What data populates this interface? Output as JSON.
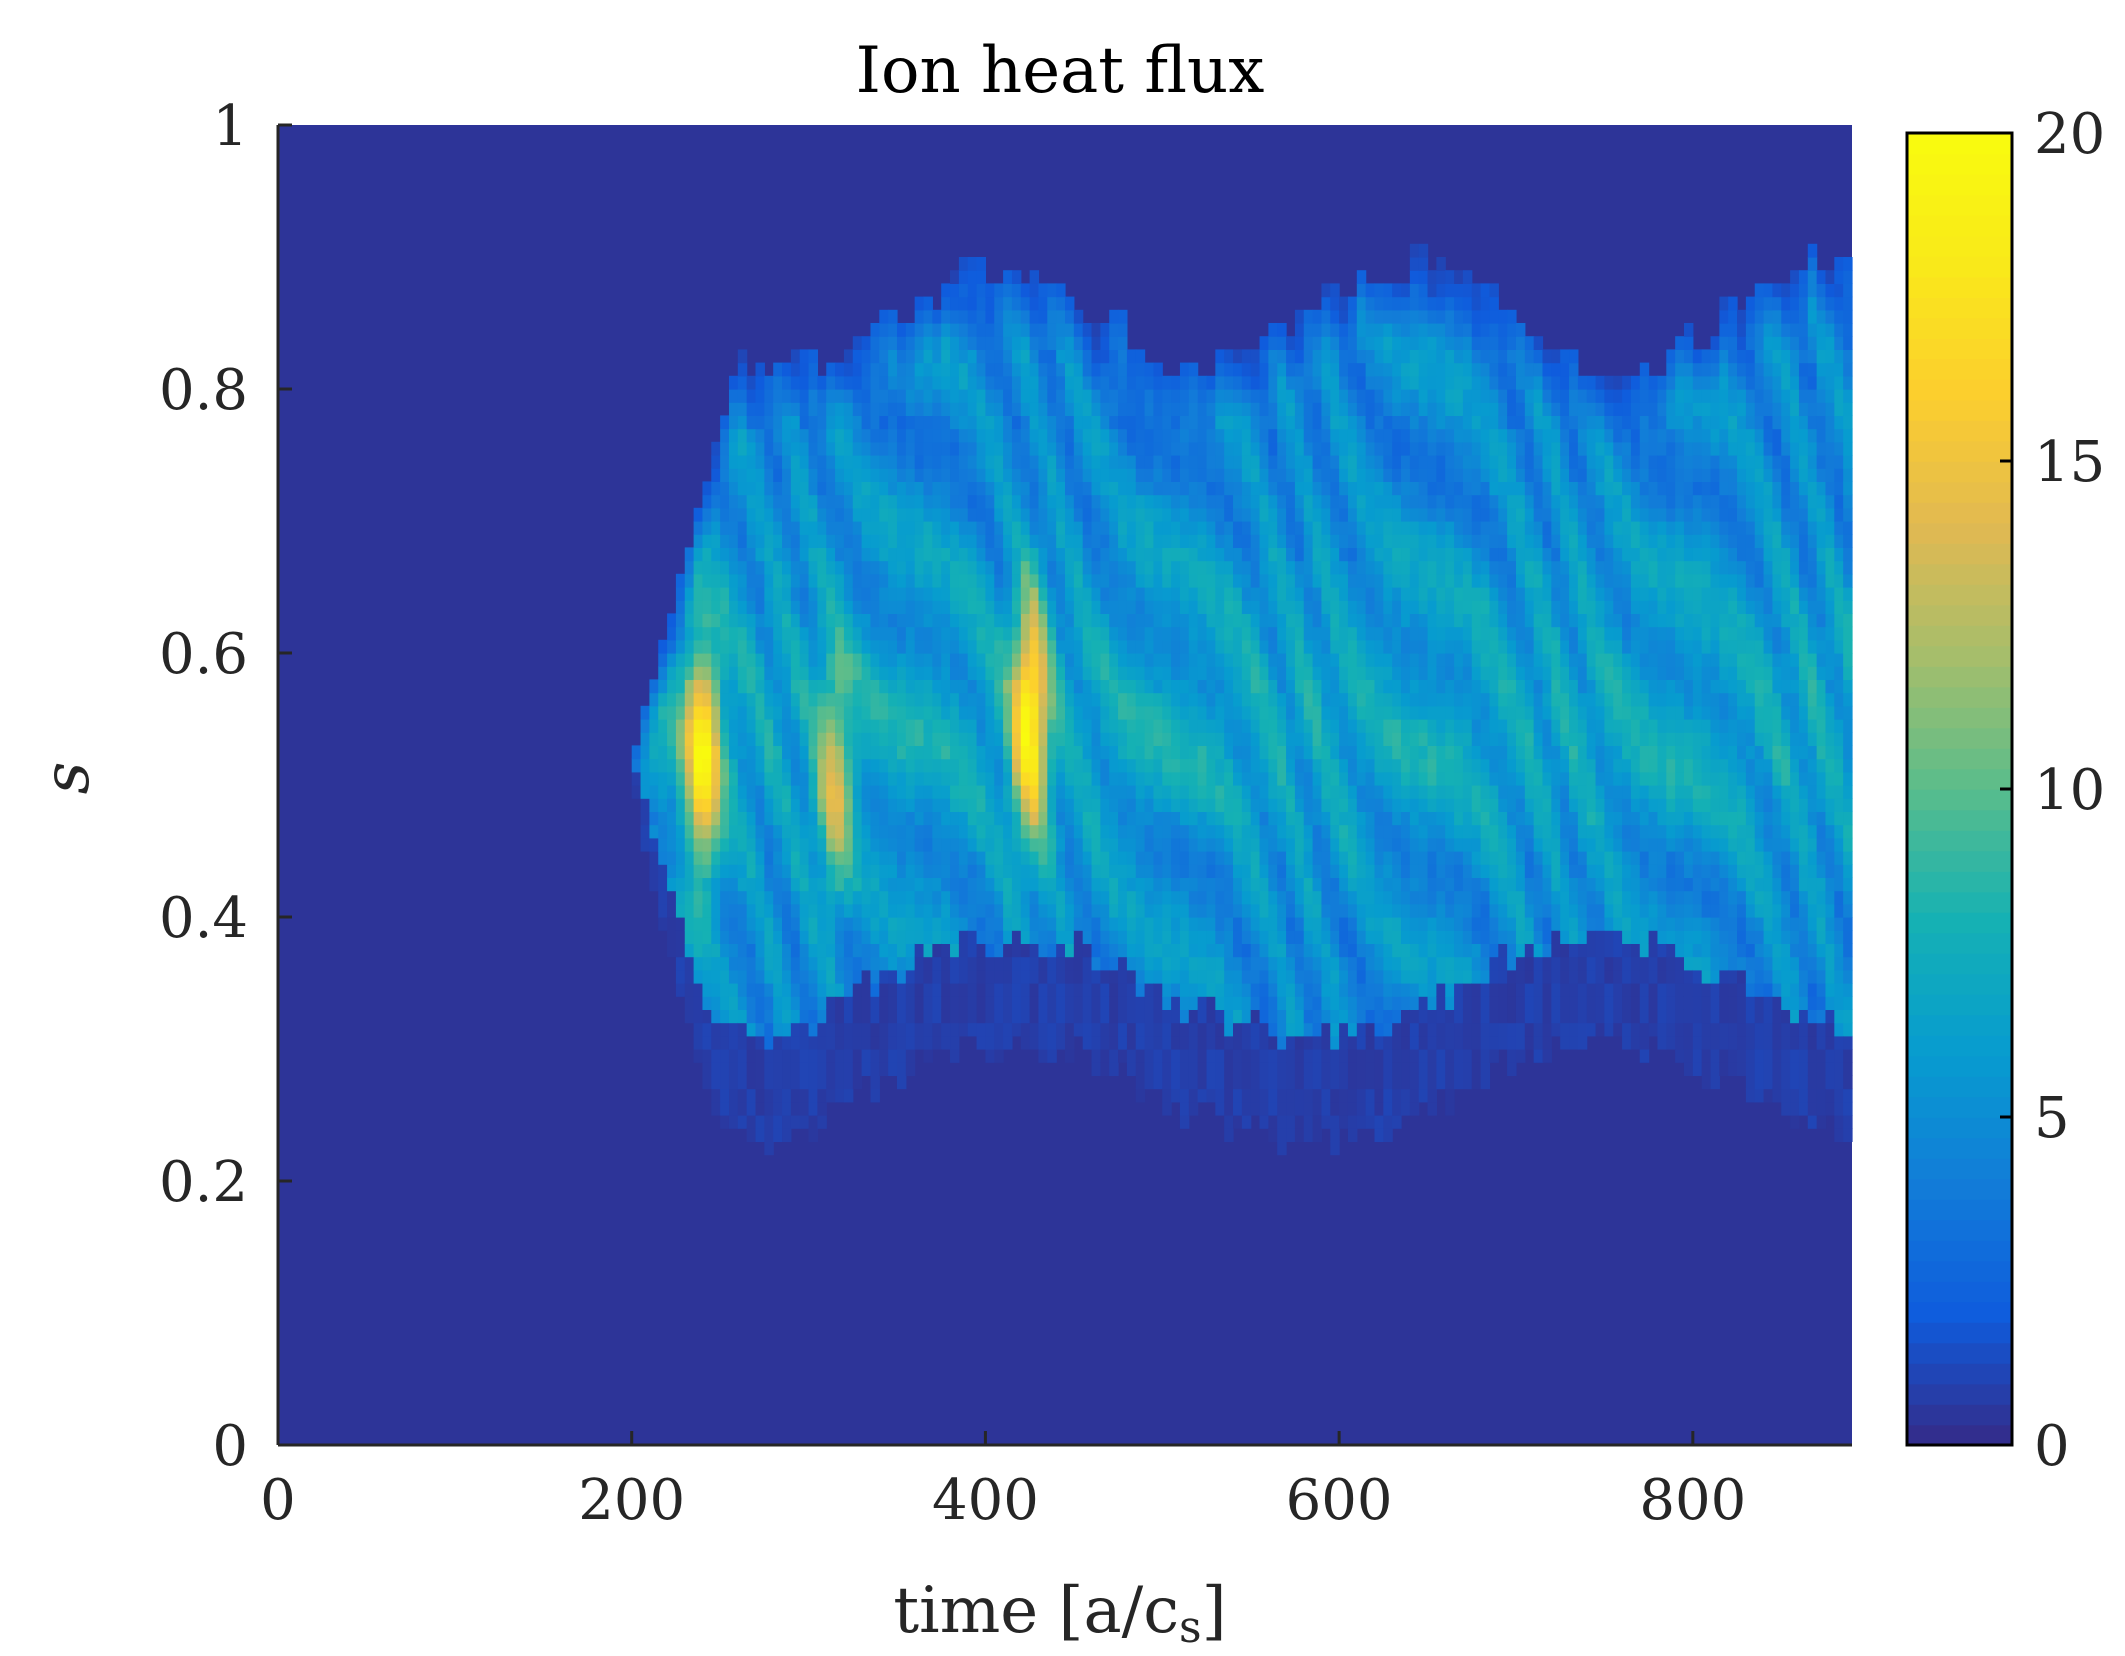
{
  "chart_data": {
    "type": "heatmap",
    "title": "Ion heat flux",
    "xlabel": "time [a/c",
    "xlabel_sub": "s",
    "xlabel_close": "]",
    "ylabel": "s",
    "xlim": [
      0,
      890
    ],
    "ylim": [
      0,
      1
    ],
    "clim": [
      0,
      20
    ],
    "colormap": "parula",
    "x_ticks": [
      0,
      200,
      400,
      600,
      800
    ],
    "x_tick_labels": [
      "0",
      "200",
      "400",
      "600",
      "800"
    ],
    "y_ticks": [
      0,
      0.2,
      0.4,
      0.6,
      0.8,
      1
    ],
    "y_tick_labels": [
      "0",
      "0.2",
      "0.4",
      "0.6",
      "0.8",
      "1"
    ],
    "colorbar_ticks": [
      0,
      5,
      10,
      15,
      20
    ],
    "colorbar_tick_labels": [
      "0",
      "5",
      "10",
      "15",
      "20"
    ],
    "colorbar_location": "right",
    "grid": false,
    "turbulence_onset_time": 200,
    "active_region_s": [
      0.25,
      0.87
    ],
    "peak_regions": [
      {
        "time": 240,
        "s_center": 0.52,
        "value": 17
      },
      {
        "time": 315,
        "s_center": 0.5,
        "value": 12
      },
      {
        "time": 425,
        "s_center": 0.55,
        "value": 18
      }
    ]
  }
}
